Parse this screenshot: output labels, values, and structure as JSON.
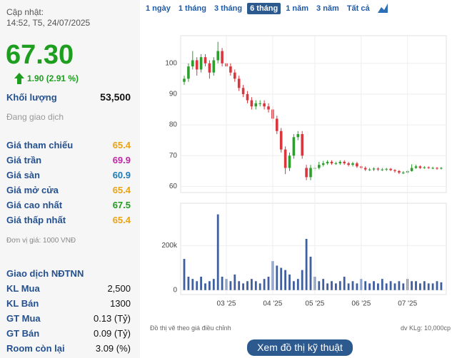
{
  "header": {
    "updated_label": "Cập nhật:",
    "updated_time": "14:52, T5, 24/07/2025"
  },
  "price": {
    "value": "67.30",
    "change": "1.90 (2.91 %)"
  },
  "volume": {
    "label": "Khối lượng",
    "value": "53,500"
  },
  "status": "Đang giao dịch",
  "price_rows": [
    {
      "label": "Giá tham chiếu",
      "value": "65.4",
      "color": "#e8a317"
    },
    {
      "label": "Giá trần",
      "value": "69.9",
      "color": "#c026a8"
    },
    {
      "label": "Giá sàn",
      "value": "60.9",
      "color": "#1f7bb8"
    },
    {
      "label": "Giá mở cửa",
      "value": "65.4",
      "color": "#e8a317"
    },
    {
      "label": "Giá cao nhất",
      "value": "67.5",
      "color": "#1e9e1e"
    },
    {
      "label": "Giá thấp nhất",
      "value": "65.4",
      "color": "#e8a317"
    }
  ],
  "unit_note": "Đơn vị giá: 1000 VNĐ",
  "foreign": {
    "title": "Giao dịch NĐTNN",
    "rows": [
      {
        "label": "KL Mua",
        "value": "2,500"
      },
      {
        "label": "KL Bán",
        "value": "1300"
      },
      {
        "label": "GT Mua",
        "value": "0.13 (Tỷ)"
      },
      {
        "label": "GT Bán",
        "value": "0.09 (Tỷ)"
      },
      {
        "label": "Room còn lại",
        "value": "3.09 (%)"
      }
    ]
  },
  "tabs": {
    "items": [
      "1 ngày",
      "1 tháng",
      "3 tháng",
      "6 tháng",
      "1 năm",
      "3 năm",
      "Tất cả"
    ],
    "selected": 3
  },
  "footer": {
    "note_left": "Đồ thị vẽ theo giá điều chỉnh",
    "note_right": "dv KLg: 10,000cp",
    "button": "Xem đồ thị kỹ thuật"
  },
  "chart_data": [
    {
      "type": "candlestick",
      "up_color": "#2e9e2e",
      "down_color": "#d9363e",
      "ylim": [
        58,
        109
      ],
      "yticks": [
        60,
        70,
        80,
        90,
        100
      ],
      "grid": true,
      "open": [
        94,
        95,
        99,
        101,
        98,
        102,
        100,
        97,
        101,
        104,
        100,
        99,
        97,
        95,
        92,
        90,
        88,
        86,
        87,
        87,
        86,
        85,
        82,
        78,
        72,
        66,
        70,
        76,
        77,
        66,
        63,
        66,
        66,
        67,
        67.5,
        68,
        67.5,
        67.5,
        68,
        67.5,
        67,
        67.5,
        66.5,
        66,
        65.5,
        65.5,
        65.8,
        65.5,
        65.5,
        65.7,
        65.3,
        65,
        64.5,
        64.5,
        65,
        66,
        66.5,
        66,
        66.2,
        66,
        66,
        65.8
      ],
      "high": [
        96,
        100,
        104,
        102,
        103,
        103,
        101,
        102,
        107,
        105,
        101,
        100,
        98,
        96,
        93,
        91,
        89,
        88,
        88,
        88,
        87,
        86,
        83,
        79,
        73,
        71,
        77,
        78,
        78,
        67,
        67,
        67,
        68,
        68.3,
        68.5,
        68.5,
        68,
        68.5,
        68.5,
        68,
        68,
        68,
        67,
        66.5,
        66,
        66.2,
        66.2,
        66,
        66,
        66,
        65.6,
        65.3,
        65,
        65.4,
        67.2,
        67,
        66.8,
        66.6,
        66.5,
        66.4,
        66.3,
        66.3
      ],
      "low": [
        93,
        94,
        98,
        96,
        97,
        99,
        95,
        96,
        100,
        99,
        98,
        96,
        94,
        91,
        89,
        87,
        85,
        85,
        86,
        85,
        84,
        81,
        77,
        71,
        64,
        65,
        69,
        75,
        69,
        62,
        62,
        65,
        65.5,
        66.5,
        67,
        67,
        67,
        67,
        67,
        66.5,
        66.5,
        66,
        65.5,
        65,
        65,
        65,
        65,
        65,
        65,
        65,
        64.5,
        64,
        64,
        64,
        64.8,
        65.7,
        65.7,
        65.7,
        65.7,
        65.6,
        65.4,
        65.5
      ],
      "close": [
        95,
        99,
        101,
        98,
        102,
        100,
        97,
        101,
        104,
        100,
        99,
        97,
        95,
        92,
        90,
        88,
        86,
        87,
        87,
        86,
        85,
        82,
        78,
        72,
        66,
        70,
        76,
        77,
        70,
        63,
        66,
        66,
        67,
        67.5,
        68,
        67.5,
        67.5,
        68,
        67.5,
        67,
        67.5,
        66.5,
        66,
        65.5,
        65.5,
        65.8,
        65.5,
        65.5,
        65.7,
        65.3,
        65,
        64.5,
        64.5,
        65,
        66,
        66.5,
        66,
        66.2,
        66,
        66,
        65.8,
        66
      ]
    },
    {
      "type": "bar",
      "color": "#3f5f9e",
      "ylim": [
        -20000,
        390000
      ],
      "yticks": [
        0,
        {
          "value": 200000,
          "label": "200k"
        }
      ],
      "grid": true,
      "categories": [
        null,
        null,
        null,
        null,
        null,
        null,
        null,
        null,
        null,
        null,
        "03 '25",
        null,
        null,
        null,
        null,
        null,
        null,
        null,
        null,
        null,
        null,
        "04 '25",
        null,
        null,
        null,
        null,
        null,
        null,
        null,
        null,
        null,
        "05 '25",
        null,
        null,
        null,
        null,
        null,
        null,
        null,
        null,
        null,
        null,
        "06 '25",
        null,
        null,
        null,
        null,
        null,
        null,
        null,
        null,
        null,
        null,
        "07 '25",
        null,
        null,
        null,
        null,
        null,
        null,
        null,
        null
      ],
      "values": [
        140000,
        60000,
        50000,
        40000,
        60000,
        30000,
        40000,
        50000,
        340000,
        60000,
        50000,
        40000,
        70000,
        40000,
        30000,
        40000,
        50000,
        40000,
        30000,
        50000,
        60000,
        130000,
        110000,
        100000,
        90000,
        70000,
        40000,
        50000,
        90000,
        230000,
        150000,
        60000,
        40000,
        50000,
        30000,
        40000,
        30000,
        40000,
        60000,
        30000,
        40000,
        30000,
        50000,
        40000,
        30000,
        40000,
        30000,
        50000,
        30000,
        40000,
        30000,
        40000,
        30000,
        50000,
        40000,
        40000,
        30000,
        40000,
        30000,
        30000,
        40000,
        35000
      ]
    }
  ]
}
